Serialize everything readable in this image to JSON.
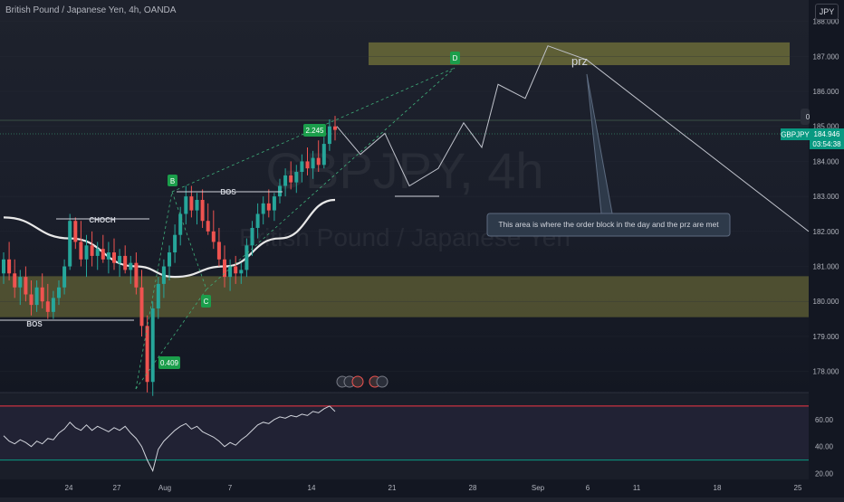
{
  "header": {
    "symbol_title": "British Pound / Japanese Yen, 4h, OANDA",
    "currency": "JPY"
  },
  "watermark": {
    "ticker": "GBPJPY, 4h",
    "name": "British Pound / Japanese Yen"
  },
  "price_tag": {
    "symbol": "GBPJPY",
    "price": "184.946",
    "countdown": "03:54:38",
    "partial": "0"
  },
  "labels": {
    "bos_left": "BOS",
    "choch": "CHOCH",
    "bos_top": "BOS",
    "point_b": "B",
    "point_c": "C",
    "point_d": "D",
    "ratio_low": "0.409",
    "ratio_high": "2.245",
    "prz": "prz",
    "note": "This area is where the order block in the day and the prz are met"
  },
  "colors": {
    "background_top": "#1e222d",
    "background_bottom": "#131722",
    "up_candle": "#26a69a",
    "down_candle": "#ef5350",
    "zone": "#7b7a3a",
    "green_label": "#1b9e4b",
    "rsi_line": "#d1d4dc",
    "rsi_upper": "#f23645",
    "rsi_lower": "#089981",
    "tag_bg": "#089981"
  },
  "chart_data": {
    "type": "candlestick",
    "symbol": "GBPJPY",
    "timeframe": "4h",
    "price_axis": {
      "ticks": [
        188.0,
        187.0,
        186.0,
        185.0,
        184.0,
        183.0,
        182.0,
        181.0,
        180.0,
        179.0,
        178.0
      ],
      "tick_labels": [
        "188.000",
        "187.000",
        "186.000",
        "185.000",
        "184.000",
        "183.000",
        "182.000",
        "181.000",
        "180.000",
        "179.000",
        "178.000"
      ],
      "range": [
        177.3,
        188.4
      ]
    },
    "rsi_axis": {
      "ticks": [
        60,
        40,
        20
      ],
      "tick_labels": [
        "60.00",
        "40.00",
        "20.00"
      ],
      "upper": 70,
      "lower": 30,
      "range": [
        17,
        78
      ]
    },
    "time_axis": {
      "tick_labels": [
        "24",
        "27",
        "Aug",
        "7",
        "14",
        "21",
        "28",
        "Sep",
        "6",
        "11",
        "18",
        "25"
      ]
    },
    "candles": [
      [
        180.8,
        181.4,
        180.5,
        181.2
      ],
      [
        181.2,
        181.7,
        180.6,
        180.8
      ],
      [
        180.8,
        181.2,
        180.1,
        180.4
      ],
      [
        180.4,
        180.9,
        179.9,
        180.7
      ],
      [
        180.7,
        181.0,
        180.0,
        180.2
      ],
      [
        180.2,
        180.6,
        179.6,
        179.9
      ],
      [
        179.9,
        180.6,
        179.7,
        180.4
      ],
      [
        180.4,
        180.8,
        179.8,
        180.0
      ],
      [
        180.0,
        180.5,
        179.5,
        179.7
      ],
      [
        179.7,
        180.3,
        179.5,
        180.1
      ],
      [
        180.1,
        180.6,
        179.9,
        180.4
      ],
      [
        180.4,
        181.2,
        180.2,
        181.0
      ],
      [
        181.0,
        182.5,
        180.9,
        182.3
      ],
      [
        182.3,
        182.4,
        181.5,
        181.7
      ],
      [
        181.7,
        182.3,
        181.0,
        181.2
      ],
      [
        181.2,
        181.9,
        180.7,
        181.6
      ],
      [
        181.6,
        182.0,
        181.0,
        181.3
      ],
      [
        181.3,
        181.7,
        180.9,
        181.5
      ],
      [
        181.5,
        181.9,
        181.1,
        181.2
      ],
      [
        181.2,
        181.7,
        180.8,
        181.4
      ],
      [
        181.4,
        181.8,
        180.9,
        181.1
      ],
      [
        181.1,
        181.5,
        180.7,
        181.3
      ],
      [
        181.3,
        181.6,
        180.8,
        180.9
      ],
      [
        180.9,
        181.3,
        180.5,
        181.1
      ],
      [
        181.1,
        181.4,
        180.2,
        180.4
      ],
      [
        180.4,
        180.9,
        179.0,
        179.3
      ],
      [
        179.3,
        179.6,
        177.4,
        177.7
      ],
      [
        177.7,
        180.0,
        177.3,
        179.8
      ],
      [
        179.8,
        180.7,
        179.5,
        180.5
      ],
      [
        180.5,
        181.2,
        180.1,
        181.0
      ],
      [
        181.0,
        181.6,
        180.6,
        181.4
      ],
      [
        181.4,
        182.2,
        181.1,
        181.9
      ],
      [
        181.9,
        182.7,
        181.6,
        182.5
      ],
      [
        182.5,
        183.3,
        182.2,
        183.0
      ],
      [
        183.0,
        183.3,
        182.4,
        182.6
      ],
      [
        182.6,
        183.1,
        182.2,
        182.9
      ],
      [
        182.9,
        183.2,
        182.1,
        182.3
      ],
      [
        182.3,
        182.8,
        181.9,
        182.0
      ],
      [
        182.0,
        182.6,
        181.5,
        181.7
      ],
      [
        181.7,
        182.1,
        181.0,
        181.2
      ],
      [
        181.2,
        181.6,
        180.4,
        180.7
      ],
      [
        180.7,
        181.2,
        180.3,
        181.0
      ],
      [
        181.0,
        181.3,
        180.5,
        180.8
      ],
      [
        180.8,
        181.1,
        180.5,
        180.9
      ],
      [
        180.9,
        181.8,
        180.7,
        181.6
      ],
      [
        181.6,
        182.3,
        181.3,
        182.1
      ],
      [
        182.1,
        182.8,
        181.8,
        182.5
      ],
      [
        182.5,
        183.0,
        182.2,
        182.8
      ],
      [
        182.8,
        183.2,
        182.4,
        182.6
      ],
      [
        182.6,
        183.1,
        182.3,
        183.0
      ],
      [
        183.0,
        183.5,
        182.8,
        183.3
      ],
      [
        183.3,
        183.8,
        183.0,
        183.6
      ],
      [
        183.6,
        184.0,
        183.2,
        183.4
      ],
      [
        183.4,
        183.9,
        183.1,
        183.7
      ],
      [
        183.7,
        184.2,
        183.4,
        184.0
      ],
      [
        184.0,
        184.4,
        183.6,
        183.8
      ],
      [
        183.8,
        184.3,
        183.5,
        184.1
      ],
      [
        184.1,
        184.6,
        183.7,
        183.9
      ],
      [
        183.9,
        184.7,
        183.8,
        184.5
      ],
      [
        184.5,
        185.2,
        184.3,
        185.0
      ],
      [
        185.0,
        185.3,
        184.6,
        184.9
      ]
    ],
    "moving_average": [
      {
        "x": 0,
        "y": 182.4
      },
      {
        "x": 12,
        "y": 181.8
      },
      {
        "x": 24,
        "y": 181.0
      },
      {
        "x": 31,
        "y": 180.7
      },
      {
        "x": 40,
        "y": 181.0
      },
      {
        "x": 50,
        "y": 181.8
      },
      {
        "x": 60,
        "y": 182.9
      }
    ],
    "zones": [
      {
        "name": "order block",
        "low": 179.55,
        "high": 180.72
      },
      {
        "name": "prz",
        "low": 186.75,
        "high": 187.45
      }
    ],
    "projection": [
      185.0,
      184.2,
      184.8,
      183.3,
      183.8,
      185.1,
      184.4,
      186.2,
      185.8,
      187.3,
      186.9,
      182.0
    ],
    "rsi": [
      48,
      44,
      42,
      45,
      43,
      40,
      44,
      42,
      46,
      45,
      50,
      53,
      58,
      54,
      52,
      56,
      52,
      55,
      53,
      51,
      54,
      52,
      55,
      50,
      46,
      40,
      30,
      22,
      38,
      44,
      48,
      52,
      55,
      57,
      53,
      55,
      51,
      49,
      47,
      44,
      40,
      43,
      41,
      45,
      48,
      52,
      56,
      58,
      57,
      60,
      62,
      61,
      63,
      62,
      64,
      63,
      66,
      65,
      68,
      70,
      66
    ]
  }
}
